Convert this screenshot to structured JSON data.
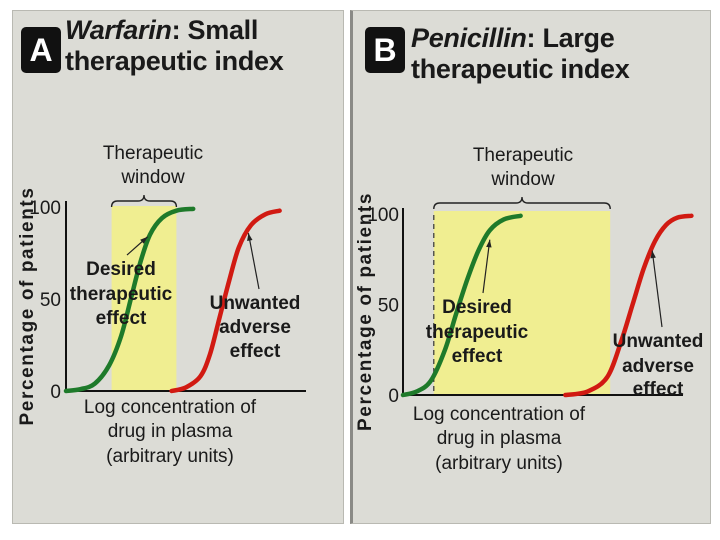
{
  "chart_data": [
    {
      "type": "line",
      "panel_label": "A",
      "title_drug": "Warfarin",
      "title_rest_line1": ": Small",
      "title_rest_line2": "therapeutic index",
      "ylabel": "Percentage of patients",
      "xlabel_lines": [
        "Log concentration of",
        "drug in plasma",
        "(arbitrary units)"
      ],
      "y_ticks": [
        0,
        50,
        100
      ],
      "ylim": [
        0,
        100
      ],
      "x_range": [
        0,
        10
      ],
      "therapeutic_window": {
        "x_start": 1.9,
        "x_end": 4.6,
        "label_lines": [
          "Therapeutic",
          "window"
        ]
      },
      "series": [
        {
          "name": "Desired therapeutic effect",
          "label_lines": [
            "Desired",
            "therapeutic",
            "effect"
          ],
          "color": "#1e7a2a",
          "x": [
            0,
            0.6,
            1.2,
            1.8,
            2.3,
            2.7,
            3.1,
            3.5,
            4.0,
            4.6,
            5.3
          ],
          "y": [
            0,
            1,
            4,
            14,
            30,
            50,
            70,
            85,
            94,
            98,
            99
          ]
        },
        {
          "name": "Unwanted adverse effect",
          "label_lines": [
            "Unwanted",
            "adverse",
            "effect"
          ],
          "color": "#d11a12",
          "x": [
            4.4,
            5.0,
            5.6,
            6.0,
            6.4,
            6.8,
            7.2,
            7.7,
            8.3,
            8.9
          ],
          "y": [
            0,
            2,
            8,
            20,
            40,
            60,
            78,
            90,
            96,
            98
          ]
        }
      ]
    },
    {
      "type": "line",
      "panel_label": "B",
      "title_drug": "Penicillin",
      "title_rest_line1": ": Large",
      "title_rest_line2": "therapeutic index",
      "ylabel": "Percentage of patients",
      "xlabel_lines": [
        "Log concentration of",
        "drug in plasma",
        "(arbitrary units)"
      ],
      "y_ticks": [
        0,
        50,
        100
      ],
      "ylim": [
        0,
        100
      ],
      "x_range": [
        0,
        10
      ],
      "therapeutic_window": {
        "x_start": 1.1,
        "x_end": 7.4,
        "label_lines": [
          "Therapeutic",
          "window"
        ]
      },
      "series": [
        {
          "name": "Desired therapeutic effect",
          "label_lines": [
            "Desired",
            "therapeutic",
            "effect"
          ],
          "color": "#1e7a2a",
          "x": [
            0,
            0.5,
            1.0,
            1.5,
            1.9,
            2.3,
            2.7,
            3.1,
            3.6,
            4.2
          ],
          "y": [
            0,
            2,
            8,
            25,
            45,
            64,
            80,
            91,
            97,
            99
          ]
        },
        {
          "name": "Unwanted adverse effect",
          "label_lines": [
            "Unwanted",
            "adverse",
            "effect"
          ],
          "color": "#d11a12",
          "x": [
            5.8,
            6.6,
            7.3,
            7.8,
            8.2,
            8.6,
            9.0,
            9.4,
            9.8,
            10.3
          ],
          "y": [
            0,
            2,
            10,
            30,
            50,
            70,
            85,
            94,
            98,
            99
          ]
        }
      ]
    }
  ]
}
